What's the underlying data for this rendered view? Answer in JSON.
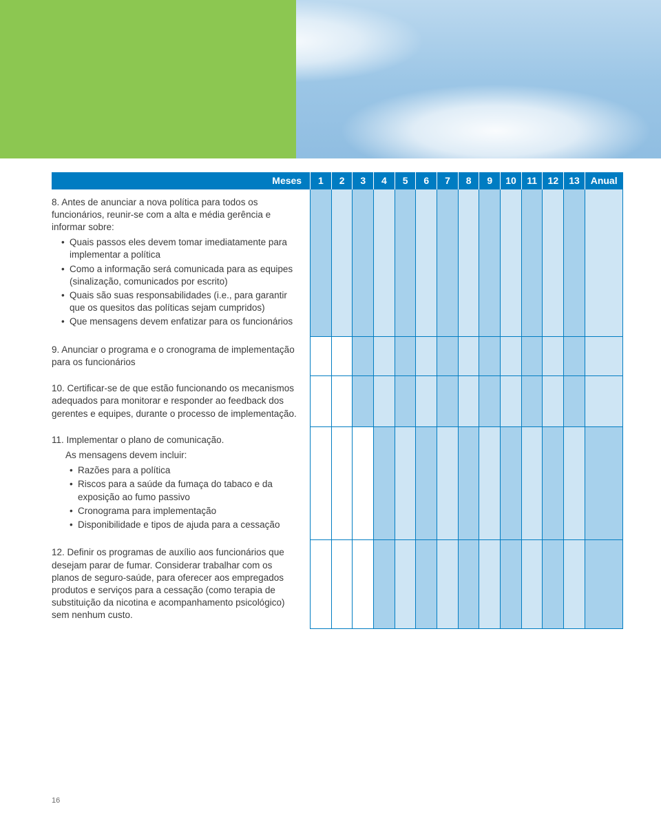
{
  "colors": {
    "header_bg": "#007cc2",
    "header_text": "#ffffff",
    "grid_line": "#007cc2",
    "shade_dark": "#a7d1ec",
    "shade_light": "#cee5f4",
    "green_tab": "#8cc751",
    "body_text": "#3a3a3a"
  },
  "header": {
    "meses": "Meses",
    "months": [
      "1",
      "2",
      "3",
      "4",
      "5",
      "6",
      "7",
      "8",
      "9",
      "10",
      "11",
      "12",
      "13"
    ],
    "annual": "Anual"
  },
  "rows": [
    {
      "num": "8.",
      "lead": "Antes de anunciar a nova política para todos os funcionários, reunir-se com a alta e média gerência e informar sobre:",
      "bullets": [
        "Quais passos eles devem tomar imediatamente para implementar a política",
        "Como a informação será comunicada para as equipes (sinalização, comunicados por escrito)",
        "Quais são suas responsabilidades (i.e., para garantir que os quesitos das políticas sejam cumpridos)",
        "Que mensagens devem enfatizar para os funcionários"
      ],
      "shade": [
        1,
        2,
        1,
        2,
        1,
        2,
        1,
        2,
        1,
        2,
        1,
        2,
        1,
        2
      ]
    },
    {
      "num": "9.",
      "lead": "Anunciar o programa e o cronograma de implementação para os funcionários",
      "shade": [
        0,
        0,
        1,
        2,
        1,
        2,
        1,
        2,
        1,
        2,
        1,
        2,
        1,
        2
      ]
    },
    {
      "num": "10.",
      "lead": "Certificar-se de que estão funcionando os mecanismos adequados para monitorar e responder ao feedback dos gerentes e equipes, durante o processo de implementação.",
      "shade": [
        0,
        0,
        1,
        2,
        1,
        2,
        1,
        2,
        1,
        2,
        1,
        2,
        1,
        2
      ]
    },
    {
      "num": "11.",
      "lead": "Implementar o plano de comunicação.",
      "para": "As mensagens devem incluir:",
      "bullets": [
        "Razões para a política",
        "Riscos para a saúde da fumaça do tabaco e da exposição ao fumo passivo",
        "Cronograma para implementação",
        "Disponibilidade e tipos de ajuda para a cessação"
      ],
      "shade": [
        0,
        0,
        0,
        1,
        2,
        1,
        2,
        1,
        2,
        1,
        2,
        1,
        2,
        1
      ]
    },
    {
      "num": "12.",
      "lead": "Definir os programas de auxílio aos funcionários que desejam parar de fumar. Considerar trabalhar com os planos de seguro-saúde, para oferecer aos empregados produtos e serviços para a cessação (como terapia de substituição da nicotina e acompanhamento psicológico) sem nenhum custo.",
      "shade": [
        0,
        0,
        0,
        1,
        2,
        1,
        2,
        1,
        2,
        1,
        2,
        1,
        2,
        1
      ]
    }
  ],
  "pagenum": "16"
}
